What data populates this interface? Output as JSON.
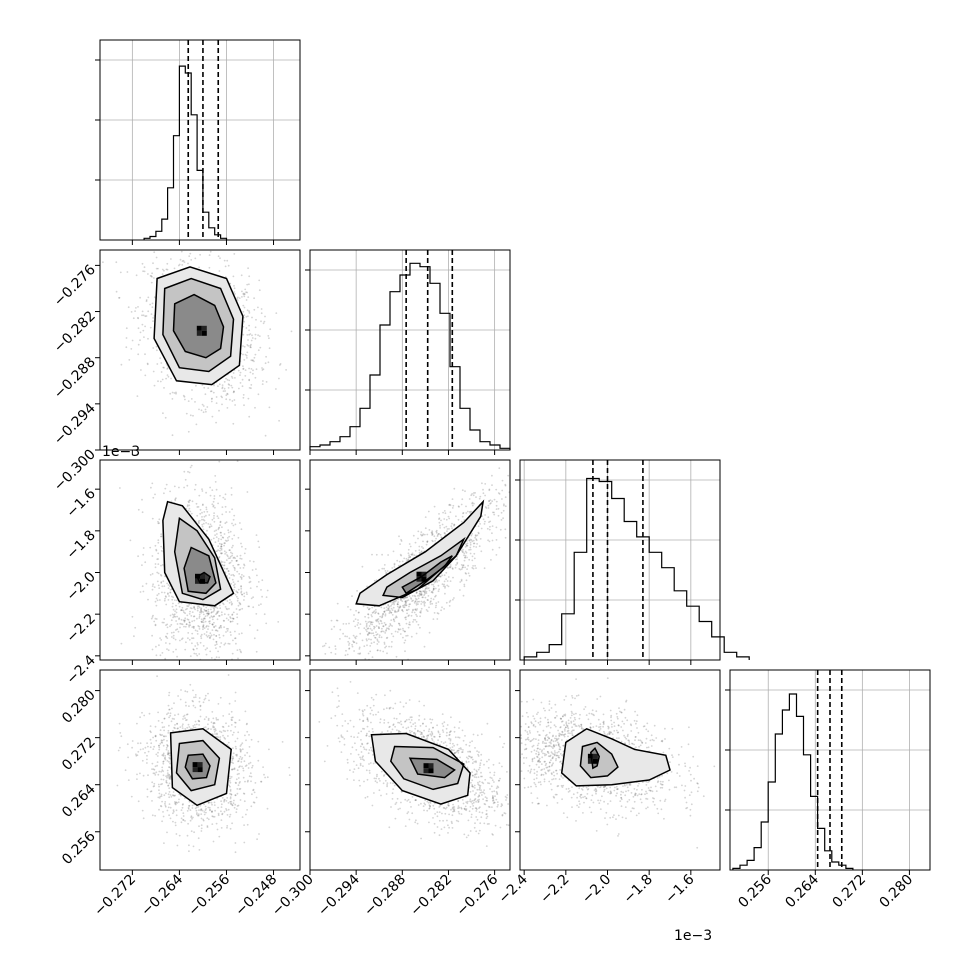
{
  "chart_data": {
    "type": "corner",
    "parameters": [
      {
        "range": [
          -0.2775,
          -0.2435
        ],
        "ticks": [
          "-0.272",
          "-0.264",
          "-0.256",
          "-0.248"
        ],
        "tick_values": [
          -0.272,
          -0.264,
          -0.256,
          -0.248
        ]
      },
      {
        "range": [
          -0.3,
          -0.274
        ],
        "ticks": [
          "-0.300",
          "-0.294",
          "-0.288",
          "-0.282",
          "-0.276"
        ],
        "tick_values": [
          -0.3,
          -0.294,
          -0.288,
          -0.282,
          -0.276
        ]
      },
      {
        "range": [
          -2.42,
          -1.46
        ],
        "ticks": [
          "-2.4",
          "-2.2",
          "-2.0",
          "-1.8",
          "-1.6"
        ],
        "tick_values": [
          -2.4,
          -2.2,
          -2.0,
          -1.8,
          -1.6
        ],
        "offset_text": "1e−3"
      },
      {
        "range": [
          0.2495,
          0.2835
        ],
        "ticks": [
          "0.256",
          "0.264",
          "0.272",
          "0.280"
        ],
        "tick_values": [
          0.256,
          0.264,
          0.272,
          0.28
        ]
      }
    ],
    "histograms": [
      {
        "param": 0,
        "bin_edges_start": -0.27,
        "bin_width": 0.001,
        "counts": [
          1,
          2,
          5,
          12,
          30,
          60,
          100,
          96,
          72,
          40,
          16,
          7,
          3,
          1
        ],
        "quantiles": [
          -0.2625,
          -0.26,
          -0.2574
        ],
        "ymax": 115
      },
      {
        "param": 1,
        "bin_edges_start": -0.3,
        "bin_width": 0.0013,
        "counts": [
          2,
          3,
          5,
          8,
          14,
          25,
          45,
          75,
          95,
          105,
          112,
          110,
          100,
          82,
          50,
          25,
          12,
          5,
          3,
          1
        ],
        "quantiles": [
          -0.2875,
          -0.2847,
          -0.2815
        ],
        "ymax": 120
      },
      {
        "param": 2,
        "bin_edges_start": -2.4,
        "bin_width": 0.06,
        "counts": [
          2,
          5,
          10,
          30,
          70,
          118,
          116,
          105,
          90,
          80,
          70,
          60,
          45,
          35,
          25,
          15,
          5,
          2
        ],
        "quantiles": [
          -2.07,
          -2.0,
          -1.83
        ],
        "ymax": 130
      },
      {
        "param": 3,
        "bin_edges_start": 0.25,
        "bin_width": 0.0012,
        "counts": [
          1,
          3,
          6,
          14,
          30,
          55,
          85,
          100,
          110,
          96,
          72,
          46,
          26,
          12,
          5,
          3,
          1
        ],
        "quantiles": [
          0.2644,
          0.2665,
          0.2685
        ],
        "ymax": 125
      }
    ],
    "pairs": [
      {
        "x": 0,
        "y": 1,
        "peak": [
          -0.2602,
          -0.2845
        ],
        "sigma": [
          0.0042,
          0.0039
        ],
        "corr": -0.25,
        "contours": [
          [
            [
              -0.2648,
              -0.281
            ],
            [
              -0.2615,
              -0.2798
            ],
            [
              -0.258,
              -0.2812
            ],
            [
              -0.2565,
              -0.284
            ],
            [
              -0.257,
              -0.2868
            ],
            [
              -0.2595,
              -0.288
            ],
            [
              -0.263,
              -0.2872
            ],
            [
              -0.265,
              -0.2845
            ]
          ],
          [
            [
              -0.2665,
              -0.279
            ],
            [
              -0.262,
              -0.2777
            ],
            [
              -0.257,
              -0.279
            ],
            [
              -0.2548,
              -0.283
            ],
            [
              -0.2553,
              -0.2878
            ],
            [
              -0.259,
              -0.2898
            ],
            [
              -0.264,
              -0.2893
            ],
            [
              -0.2668,
              -0.285
            ]
          ],
          [
            [
              -0.2678,
              -0.2777
            ],
            [
              -0.2622,
              -0.2762
            ],
            [
              -0.256,
              -0.2777
            ],
            [
              -0.2532,
              -0.2826
            ],
            [
              -0.2538,
              -0.289
            ],
            [
              -0.2585,
              -0.2915
            ],
            [
              -0.2645,
              -0.291
            ],
            [
              -0.2683,
              -0.2855
            ]
          ]
        ]
      },
      {
        "x": 0,
        "y": 2,
        "peak": [
          -0.2605,
          -2.03
        ],
        "sigma": [
          0.0035,
          0.18
        ],
        "corr": 0.0,
        "contours": [
          [
            [
              -0.2598,
              -2.0
            ],
            [
              -0.2588,
              -2.02
            ],
            [
              -0.2592,
              -2.05
            ],
            [
              -0.2605,
              -2.05
            ],
            [
              -0.261,
              -2.02
            ]
          ],
          [
            [
              -0.262,
              -1.88
            ],
            [
              -0.259,
              -1.92
            ],
            [
              -0.2578,
              -2.05
            ],
            [
              -0.2595,
              -2.1
            ],
            [
              -0.2625,
              -2.09
            ],
            [
              -0.2632,
              -1.98
            ]
          ],
          [
            [
              -0.264,
              -1.74
            ],
            [
              -0.261,
              -1.8
            ],
            [
              -0.258,
              -1.93
            ],
            [
              -0.257,
              -2.08
            ],
            [
              -0.26,
              -2.13
            ],
            [
              -0.2635,
              -2.1
            ],
            [
              -0.2648,
              -1.9
            ]
          ],
          [
            [
              -0.266,
              -1.66
            ],
            [
              -0.2635,
              -1.68
            ],
            [
              -0.259,
              -1.84
            ],
            [
              -0.2548,
              -2.1
            ],
            [
              -0.258,
              -2.16
            ],
            [
              -0.264,
              -2.14
            ],
            [
              -0.2665,
              -2.0
            ],
            [
              -0.2668,
              -1.75
            ]
          ]
        ]
      },
      {
        "x": 1,
        "y": 2,
        "peak": [
          -0.2855,
          -2.02
        ],
        "sigma": [
          0.0045,
          0.17
        ],
        "corr": 0.85,
        "contours": [
          [
            [
              -0.288,
              -2.07
            ],
            [
              -0.2855,
              -2.02
            ],
            [
              -0.283,
              -1.95
            ],
            [
              -0.2815,
              -1.92
            ],
            [
              -0.2825,
              -1.97
            ],
            [
              -0.285,
              -2.04
            ],
            [
              -0.2875,
              -2.1
            ]
          ],
          [
            [
              -0.29,
              -2.07
            ],
            [
              -0.287,
              -2.0
            ],
            [
              -0.283,
              -1.92
            ],
            [
              -0.28,
              -1.84
            ],
            [
              -0.281,
              -1.92
            ],
            [
              -0.284,
              -2.04
            ],
            [
              -0.288,
              -2.12
            ],
            [
              -0.2905,
              -2.11
            ]
          ],
          [
            [
              -0.2935,
              -2.1
            ],
            [
              -0.29,
              -2.01
            ],
            [
              -0.285,
              -1.9
            ],
            [
              -0.28,
              -1.76
            ],
            [
              -0.2775,
              -1.66
            ],
            [
              -0.2778,
              -1.73
            ],
            [
              -0.281,
              -1.92
            ],
            [
              -0.286,
              -2.08
            ],
            [
              -0.291,
              -2.16
            ],
            [
              -0.294,
              -2.15
            ]
          ]
        ]
      },
      {
        "x": 0,
        "y": 3,
        "peak": [
          -0.2609,
          0.267
        ],
        "sigma": [
          0.0038,
          0.0043
        ],
        "corr": -0.1,
        "contours": [
          [
            [
              -0.2625,
              0.269
            ],
            [
              -0.26,
              0.2692
            ],
            [
              -0.2588,
              0.2672
            ],
            [
              -0.2594,
              0.2652
            ],
            [
              -0.2618,
              0.265
            ],
            [
              -0.263,
              0.267
            ]
          ],
          [
            [
              -0.264,
              0.271
            ],
            [
              -0.26,
              0.2715
            ],
            [
              -0.2572,
              0.2685
            ],
            [
              -0.258,
              0.264
            ],
            [
              -0.262,
              0.263
            ],
            [
              -0.2645,
              0.266
            ]
          ],
          [
            [
              -0.2655,
              0.2728
            ],
            [
              -0.26,
              0.2735
            ],
            [
              -0.2552,
              0.27
            ],
            [
              -0.256,
              0.2625
            ],
            [
              -0.261,
              0.2605
            ],
            [
              -0.2652,
              0.2635
            ]
          ]
        ]
      },
      {
        "x": 1,
        "y": 3,
        "peak": [
          -0.2846,
          0.2668
        ],
        "sigma": [
          0.0042,
          0.0042
        ],
        "corr": -0.5,
        "contours": [
          [
            [
              -0.287,
              0.2685
            ],
            [
              -0.2835,
              0.2683
            ],
            [
              -0.2812,
              0.2665
            ],
            [
              -0.2825,
              0.2652
            ],
            [
              -0.286,
              0.2658
            ]
          ],
          [
            [
              -0.289,
              0.2705
            ],
            [
              -0.284,
              0.2703
            ],
            [
              -0.28,
              0.2675
            ],
            [
              -0.2808,
              0.2642
            ],
            [
              -0.284,
              0.2632
            ],
            [
              -0.2878,
              0.265
            ],
            [
              -0.2895,
              0.268
            ]
          ],
          [
            [
              -0.292,
              0.2725
            ],
            [
              -0.2875,
              0.2727
            ],
            [
              -0.282,
              0.27
            ],
            [
              -0.2792,
              0.266
            ],
            [
              -0.2795,
              0.2622
            ],
            [
              -0.283,
              0.2607
            ],
            [
              -0.288,
              0.263
            ],
            [
              -0.2915,
              0.268
            ]
          ]
        ]
      },
      {
        "x": 2,
        "y": 3,
        "peak": [
          -2.07,
          0.2684
        ],
        "sigma": [
          0.17,
          0.0036
        ],
        "corr": -0.3,
        "contours": [
          [
            [
              -2.08,
              0.2695
            ],
            [
              -2.06,
              0.2702
            ],
            [
              -2.04,
              0.2688
            ],
            [
              -2.05,
              0.2672
            ],
            [
              -2.07,
              0.2668
            ]
          ],
          [
            [
              -2.12,
              0.2705
            ],
            [
              -2.05,
              0.2712
            ],
            [
              -1.98,
              0.2692
            ],
            [
              -1.95,
              0.267
            ],
            [
              -2.0,
              0.2655
            ],
            [
              -2.08,
              0.2652
            ],
            [
              -2.13,
              0.2672
            ]
          ],
          [
            [
              -2.2,
              0.2712
            ],
            [
              -2.1,
              0.2735
            ],
            [
              -1.98,
              0.2718
            ],
            [
              -1.87,
              0.27
            ],
            [
              -1.72,
              0.269
            ],
            [
              -1.7,
              0.2665
            ],
            [
              -1.8,
              0.2648
            ],
            [
              -1.98,
              0.264
            ],
            [
              -2.15,
              0.2638
            ],
            [
              -2.22,
              0.266
            ]
          ]
        ]
      }
    ]
  }
}
